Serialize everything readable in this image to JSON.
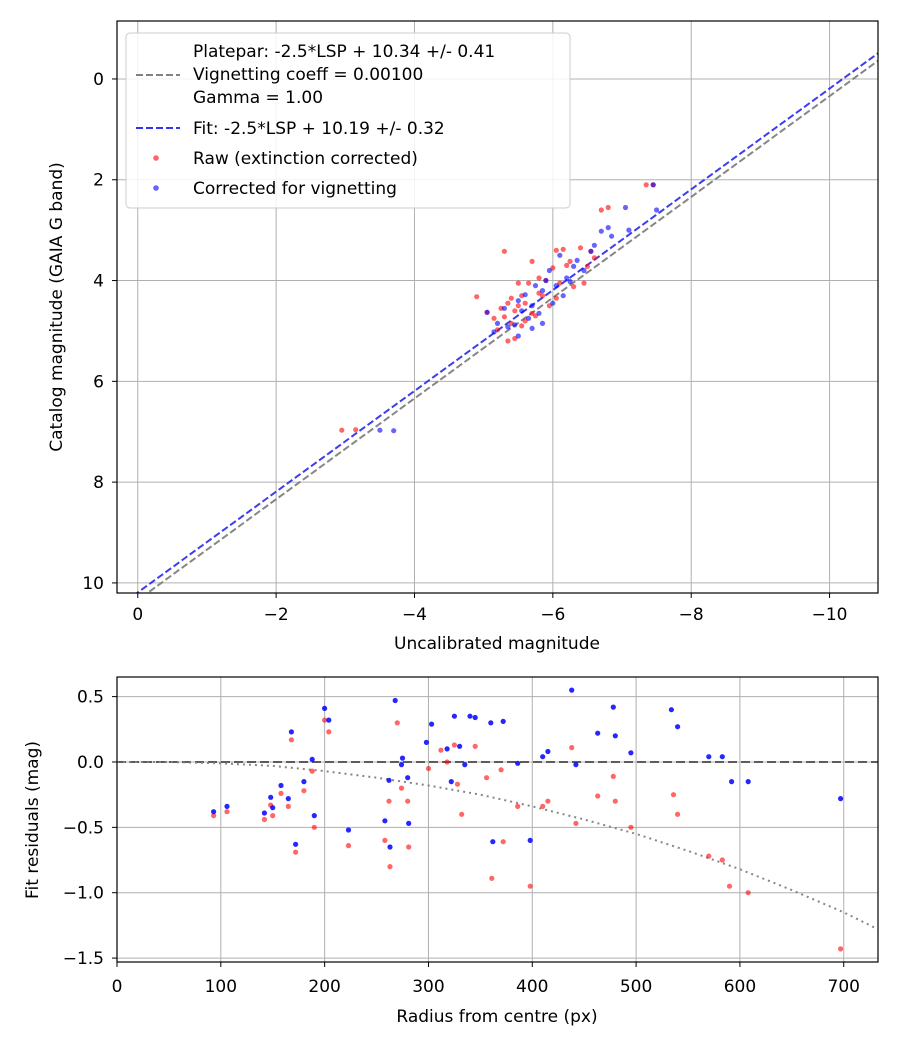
{
  "chart_data": [
    {
      "type": "scatter",
      "title": "",
      "xlabel": "Uncalibrated magnitude",
      "ylabel": "Catalog magnitude (GAIA G band)",
      "xlim": [
        0.3,
        -10.7
      ],
      "ylim": [
        10.2,
        -1.15
      ],
      "xticks": [
        0,
        -2,
        -4,
        -6,
        -8,
        -10
      ],
      "xtick_labels": [
        "0",
        "−2",
        "−4",
        "−6",
        "−8",
        "−10"
      ],
      "yticks": [
        0,
        2,
        4,
        6,
        8,
        10
      ],
      "ytick_labels": [
        "0",
        "2",
        "4",
        "6",
        "8",
        "10"
      ],
      "grid": true,
      "legend_position": "top-left",
      "colors": {
        "raw": "#ff0000",
        "corrected": "#0000ff",
        "platepar_line": "#808080",
        "fit_line": "#3333ee"
      },
      "lines": [
        {
          "name": "Platepar: -2.5*LSP + 10.34 +/- 0.41",
          "label_lines": [
            "Platepar: -2.5*LSP + 10.34 +/- 0.41",
            "Vignetting coeff = 0.00100",
            "Gamma = 1.00"
          ],
          "color": "#808080",
          "style": "dashed",
          "x": [
            0.3,
            -10.7
          ],
          "y": [
            10.64,
            -0.36
          ]
        },
        {
          "name": "Fit: -2.5*LSP + 10.19 +/- 0.32",
          "label_lines": [
            "Fit: -2.5*LSP + 10.19 +/- 0.32"
          ],
          "color": "#3333ee",
          "style": "dashed",
          "x": [
            0.3,
            -10.7
          ],
          "y": [
            10.49,
            -0.51
          ]
        }
      ],
      "series": [
        {
          "name": "Raw (extinction corrected)",
          "color": "#ff0000",
          "x": [
            -2.95,
            -3.15,
            -4.9,
            -5.05,
            -5.15,
            -5.2,
            -5.25,
            -5.3,
            -5.3,
            -5.35,
            -5.35,
            -5.4,
            -5.4,
            -5.45,
            -5.45,
            -5.5,
            -5.5,
            -5.55,
            -5.55,
            -5.6,
            -5.6,
            -5.65,
            -5.7,
            -5.7,
            -5.75,
            -5.8,
            -5.8,
            -5.85,
            -5.9,
            -5.95,
            -6.0,
            -6.05,
            -6.05,
            -6.1,
            -6.15,
            -6.2,
            -6.25,
            -6.3,
            -6.4,
            -6.45,
            -6.5,
            -6.55,
            -6.6,
            -6.7,
            -6.8,
            -7.35,
            -7.45
          ],
          "y": [
            6.97,
            6.96,
            4.32,
            4.63,
            4.75,
            4.98,
            4.55,
            4.72,
            3.42,
            4.45,
            5.2,
            4.85,
            4.35,
            4.6,
            5.15,
            4.5,
            4.05,
            4.9,
            4.3,
            4.45,
            4.8,
            4.05,
            3.62,
            4.65,
            4.7,
            4.25,
            3.95,
            4.3,
            4.0,
            4.5,
            3.75,
            3.4,
            4.35,
            4.05,
            3.38,
            3.7,
            3.62,
            4.12,
            3.35,
            4.05,
            3.72,
            3.42,
            3.55,
            2.6,
            2.55,
            2.1,
            2.1
          ]
        },
        {
          "name": "Corrected for vignetting",
          "color": "#0000ff",
          "x": [
            -3.5,
            -3.7,
            -5.05,
            -5.15,
            -5.2,
            -5.3,
            -5.35,
            -5.45,
            -5.5,
            -5.5,
            -5.55,
            -5.6,
            -5.65,
            -5.7,
            -5.7,
            -5.75,
            -5.8,
            -5.85,
            -5.85,
            -5.9,
            -5.95,
            -6.0,
            -6.05,
            -6.1,
            -6.15,
            -6.2,
            -6.25,
            -6.3,
            -6.35,
            -6.45,
            -6.55,
            -6.6,
            -6.7,
            -6.8,
            -6.85,
            -7.05,
            -7.1,
            -7.45,
            -7.5
          ],
          "y": [
            6.97,
            6.98,
            4.63,
            5.02,
            4.85,
            4.55,
            4.92,
            4.88,
            4.4,
            5.1,
            4.6,
            4.28,
            4.75,
            4.5,
            4.95,
            4.1,
            4.65,
            4.2,
            4.85,
            4.0,
            3.8,
            4.45,
            4.1,
            3.5,
            4.3,
            3.95,
            4.02,
            3.72,
            3.6,
            3.8,
            3.42,
            3.3,
            3.02,
            2.95,
            3.12,
            2.55,
            3.0,
            2.1,
            2.6
          ]
        }
      ],
      "legend": [
        "Platepar: -2.5*LSP + 10.34 +/- 0.41",
        "Vignetting coeff = 0.00100",
        "Gamma = 1.00",
        "Fit: -2.5*LSP + 10.19 +/- 0.32",
        "Raw (extinction corrected)",
        "Corrected for vignetting"
      ]
    },
    {
      "type": "scatter",
      "title": "",
      "xlabel": "Radius from centre (px)",
      "ylabel": "Fit residuals (mag)",
      "xlim": [
        0,
        733
      ],
      "ylim": [
        -1.53,
        0.65
      ],
      "xticks": [
        0,
        100,
        200,
        300,
        400,
        500,
        600,
        700
      ],
      "xtick_labels": [
        "0",
        "100",
        "200",
        "300",
        "400",
        "500",
        "600",
        "700"
      ],
      "yticks": [
        0.5,
        0.0,
        -0.5,
        -1.0,
        -1.5
      ],
      "ytick_labels": [
        "0.5",
        "0.0",
        "−0.5",
        "−1.0",
        "−1.5"
      ],
      "grid": true,
      "colors": {
        "raw": "#ff0000",
        "corrected": "#0000ff",
        "zero_line": "#555555",
        "model_curve": "#808080"
      },
      "lines": [
        {
          "name": "zero",
          "style": "dashed",
          "color": "#555555",
          "x": [
            0,
            733
          ],
          "y": [
            0,
            0
          ]
        },
        {
          "name": "vignetting model",
          "style": "dotted",
          "color": "#808080",
          "x": [
            0,
            50,
            100,
            150,
            200,
            250,
            300,
            350,
            400,
            450,
            500,
            550,
            600,
            650,
            700,
            733
          ],
          "y": [
            0.0,
            0.0,
            -0.01,
            -0.03,
            -0.07,
            -0.12,
            -0.18,
            -0.25,
            -0.34,
            -0.44,
            -0.55,
            -0.68,
            -0.82,
            -0.98,
            -1.15,
            -1.28
          ]
        }
      ],
      "series": [
        {
          "name": "Raw (extinction corrected)",
          "color": "#ff0000",
          "x": [
            93,
            106,
            142,
            148,
            150,
            158,
            165,
            168,
            172,
            180,
            188,
            190,
            200,
            204,
            223,
            258,
            262,
            263,
            270,
            274,
            280,
            281,
            300,
            312,
            318,
            325,
            328,
            332,
            345,
            356,
            361,
            370,
            372,
            386,
            398,
            410,
            415,
            438,
            442,
            463,
            478,
            480,
            495,
            536,
            540,
            570,
            583,
            590,
            608,
            697
          ],
          "y": [
            -0.41,
            -0.38,
            -0.44,
            -0.33,
            -0.41,
            -0.24,
            -0.34,
            0.17,
            -0.69,
            -0.22,
            -0.07,
            -0.5,
            0.32,
            0.23,
            -0.64,
            -0.6,
            -0.3,
            -0.8,
            0.3,
            -0.2,
            -0.3,
            -0.65,
            -0.05,
            0.09,
            0.0,
            0.13,
            -0.17,
            -0.4,
            0.12,
            -0.12,
            -0.89,
            -0.06,
            -0.61,
            -0.34,
            -0.95,
            -0.34,
            -0.3,
            0.11,
            -0.47,
            -0.26,
            -0.11,
            -0.3,
            -0.5,
            -0.25,
            -0.4,
            -0.72,
            -0.75,
            -0.95,
            -1.0,
            -1.43
          ]
        },
        {
          "name": "Corrected for vignetting",
          "color": "#0000ff",
          "x": [
            93,
            106,
            142,
            148,
            150,
            158,
            165,
            168,
            172,
            180,
            188,
            190,
            200,
            204,
            223,
            258,
            262,
            263,
            268,
            274,
            275,
            280,
            281,
            298,
            303,
            318,
            322,
            325,
            330,
            335,
            340,
            345,
            360,
            362,
            372,
            386,
            398,
            410,
            415,
            438,
            442,
            463,
            478,
            480,
            495,
            534,
            540,
            570,
            583,
            592,
            608,
            697
          ],
          "y": [
            -0.38,
            -0.34,
            -0.39,
            -0.27,
            -0.35,
            -0.18,
            -0.28,
            0.23,
            -0.63,
            -0.15,
            0.02,
            -0.41,
            0.41,
            0.32,
            -0.52,
            -0.45,
            -0.14,
            -0.65,
            0.47,
            -0.02,
            0.03,
            -0.12,
            -0.47,
            0.15,
            0.29,
            0.1,
            -0.15,
            0.35,
            0.12,
            -0.02,
            0.35,
            0.34,
            0.3,
            -0.61,
            0.31,
            -0.01,
            -0.6,
            0.04,
            0.08,
            0.55,
            -0.02,
            0.22,
            0.42,
            0.2,
            0.07,
            0.4,
            0.27,
            0.04,
            0.04,
            -0.15,
            -0.15,
            -0.28
          ]
        }
      ]
    }
  ]
}
